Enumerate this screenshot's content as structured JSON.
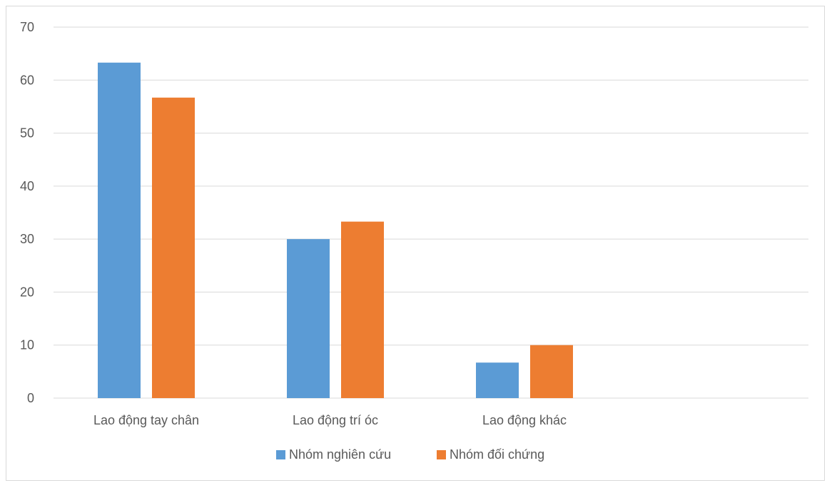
{
  "chart_data": {
    "type": "bar",
    "categories": [
      "Lao động tay chân",
      "Lao động trí óc",
      "Lao động khác"
    ],
    "series": [
      {
        "name": "Nhóm nghiên cứu",
        "color": "#5B9BD5",
        "values": [
          63.3,
          30.0,
          6.7
        ]
      },
      {
        "name": "Nhóm đối chứng",
        "color": "#ED7D31",
        "values": [
          56.7,
          33.3,
          10.0
        ]
      }
    ],
    "y_ticks": [
      "0",
      "10",
      "20",
      "30",
      "40",
      "50",
      "60",
      "70"
    ],
    "ylim": [
      0,
      70
    ],
    "grid": true,
    "legend_position": "bottom",
    "title": "",
    "xlabel": "",
    "ylabel": ""
  }
}
